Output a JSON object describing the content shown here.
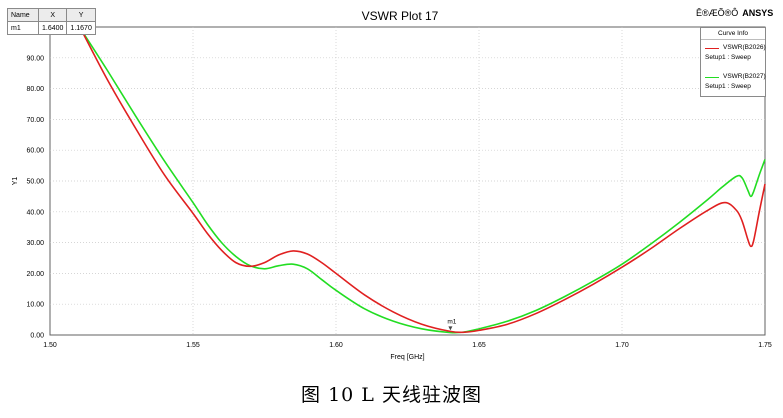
{
  "header": {
    "title": "VSWR Plot 17",
    "vendor_garbled": "Ê®ÆÕ®Ô",
    "vendor": "ANSYS"
  },
  "marker_table": {
    "headers": [
      "Name",
      "X",
      "Y"
    ],
    "rows": [
      [
        "m1",
        "1.6400",
        "1.1670"
      ]
    ]
  },
  "legend": {
    "title": "Curve Info",
    "entries": [
      {
        "name": "VSWR(B2026)",
        "setup": "Setup1 : Sweep",
        "color": "#e02020"
      },
      {
        "name": "VSWR(B2027)",
        "setup": "Setup1 : Sweep",
        "color": "#22dd22"
      }
    ]
  },
  "caption": "图 10 L 天线驻波图",
  "chart_data": {
    "type": "line",
    "title": "VSWR Plot 17",
    "xlabel": "Freq [GHz]",
    "ylabel": "Y1",
    "xlim": [
      1.5,
      1.75
    ],
    "ylim": [
      0.0,
      100.0
    ],
    "xticks": [
      "1.50",
      "1.55",
      "1.60",
      "1.65",
      "1.70",
      "1.75"
    ],
    "yticks": [
      "0.00",
      "10.00",
      "20.00",
      "30.00",
      "40.00",
      "50.00",
      "60.00",
      "70.00",
      "80.00",
      "90.00"
    ],
    "grid": true,
    "legend_position": "top-right",
    "marker": {
      "name": "m1",
      "x": 1.64,
      "y": 1.167
    },
    "series": [
      {
        "name": "VSWR(B2026)",
        "color": "#e02020",
        "x": [
          1.511,
          1.52,
          1.53,
          1.54,
          1.55,
          1.555,
          1.56,
          1.565,
          1.57,
          1.575,
          1.58,
          1.585,
          1.59,
          1.595,
          1.6,
          1.61,
          1.62,
          1.63,
          1.64,
          1.645,
          1.65,
          1.66,
          1.67,
          1.68,
          1.69,
          1.7,
          1.71,
          1.72,
          1.73,
          1.736,
          1.74,
          1.742,
          1.744,
          1.745,
          1.746,
          1.748,
          1.75
        ],
        "values": [
          99.0,
          83.0,
          67.0,
          52.0,
          39.5,
          33.0,
          27.5,
          23.5,
          22.3,
          23.5,
          26.0,
          27.3,
          26.3,
          23.5,
          20.0,
          13.0,
          7.5,
          3.5,
          1.17,
          0.9,
          1.5,
          3.5,
          7.0,
          11.5,
          16.5,
          22.0,
          28.0,
          34.5,
          40.5,
          43.0,
          40.5,
          37.0,
          31.0,
          28.8,
          30.5,
          40.0,
          49.0
        ]
      },
      {
        "name": "VSWR(B2027)",
        "color": "#22dd22",
        "x": [
          1.511,
          1.52,
          1.53,
          1.54,
          1.55,
          1.555,
          1.56,
          1.565,
          1.57,
          1.575,
          1.58,
          1.585,
          1.59,
          1.595,
          1.6,
          1.61,
          1.62,
          1.63,
          1.64,
          1.645,
          1.65,
          1.66,
          1.67,
          1.68,
          1.69,
          1.7,
          1.71,
          1.72,
          1.73,
          1.735,
          1.74,
          1.742,
          1.744,
          1.745,
          1.746,
          1.748,
          1.75
        ],
        "values": [
          99.0,
          86.0,
          71.0,
          56.5,
          43.0,
          36.0,
          30.0,
          25.5,
          22.5,
          21.5,
          22.5,
          23.0,
          21.5,
          18.0,
          14.5,
          8.5,
          4.5,
          2.0,
          0.8,
          1.0,
          2.0,
          4.5,
          8.0,
          12.5,
          17.5,
          23.0,
          29.5,
          36.5,
          44.0,
          48.0,
          51.5,
          51.0,
          47.0,
          45.0,
          46.5,
          52.0,
          57.0
        ]
      }
    ]
  }
}
